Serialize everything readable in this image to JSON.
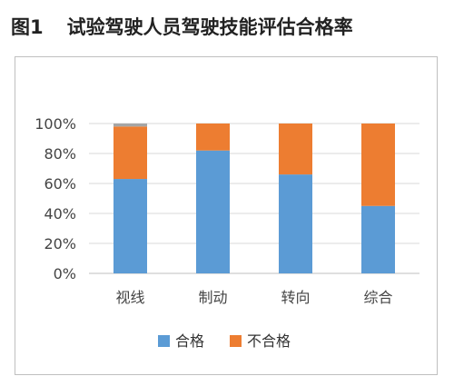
{
  "figure": {
    "number": "图1",
    "title": "试验驾驶人员驾驶技能评估合格率"
  },
  "colors": {
    "pass": "#5b9bd5",
    "fail": "#ed7d31",
    "other": "#a5a5a5",
    "grid": "#d9d9d9",
    "axis": "#bfbfbf"
  },
  "chart_data": {
    "type": "bar",
    "stacked": true,
    "categories": [
      "视线",
      "制动",
      "转向",
      "综合"
    ],
    "series": [
      {
        "name": "合格",
        "color": "#5b9bd5",
        "values": [
          63,
          82,
          66,
          45
        ]
      },
      {
        "name": "不合格",
        "color": "#ed7d31",
        "values": [
          35,
          18,
          34,
          55
        ]
      }
    ],
    "unlabeled_segment": {
      "color": "#a5a5a5",
      "values": [
        2,
        0,
        0,
        0
      ]
    },
    "ylim": [
      0,
      100
    ],
    "yticks": [
      0,
      20,
      40,
      60,
      80,
      100
    ],
    "ytick_labels": [
      "0%",
      "20%",
      "40%",
      "60%",
      "80%",
      "100%"
    ],
    "grid": true,
    "legend_position": "bottom"
  }
}
